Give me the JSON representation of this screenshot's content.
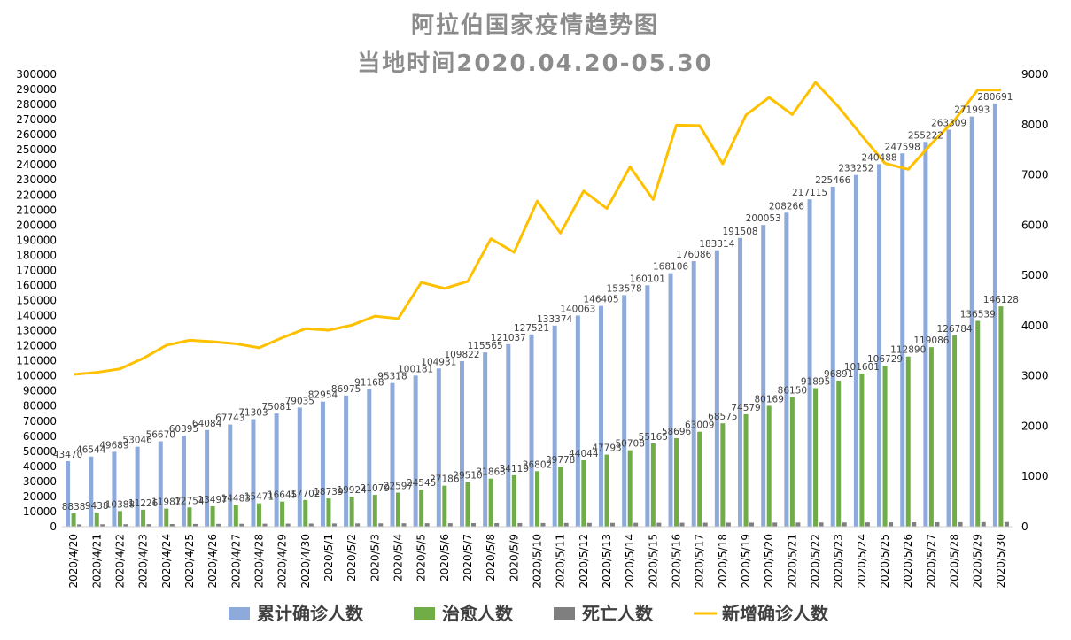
{
  "chart_data": {
    "type": "bar",
    "title": "阿拉伯国家疫情趋势图",
    "subtitle": "当地时间2020.04.20-05.30",
    "categories": [
      "2020/4/20",
      "2020/4/21",
      "2020/4/22",
      "2020/4/23",
      "2020/4/24",
      "2020/4/25",
      "2020/4/26",
      "2020/4/27",
      "2020/4/28",
      "2020/4/29",
      "2020/4/30",
      "2020/5/1",
      "2020/5/2",
      "2020/5/3",
      "2020/5/4",
      "2020/5/5",
      "2020/5/6",
      "2020/5/7",
      "2020/5/8",
      "2020/5/9",
      "2020/5/10",
      "2020/5/11",
      "2020/5/12",
      "2020/5/13",
      "2020/5/14",
      "2020/5/15",
      "2020/5/16",
      "2020/5/17",
      "2020/5/18",
      "2020/5/19",
      "2020/5/20",
      "2020/5/21",
      "2020/5/22",
      "2020/5/23",
      "2020/5/24",
      "2020/5/25",
      "2020/5/26",
      "2020/5/27",
      "2020/5/28",
      "2020/5/29",
      "2020/5/30"
    ],
    "y_left": {
      "min": 0,
      "max": 300000,
      "step": 10000
    },
    "y_right": {
      "min": 0,
      "max": 9000,
      "step": 1000
    },
    "grid": false,
    "legend_position": "bottom",
    "series": [
      {
        "name": "累计确诊人数",
        "type": "bar",
        "axis": "left",
        "color": "#8eaadb",
        "show_labels": true,
        "values": [
          43470,
          46544,
          49689,
          53046,
          56670,
          60395,
          64084,
          67743,
          71303,
          75081,
          79035,
          82954,
          86975,
          91168,
          95318,
          100181,
          104931,
          109822,
          115565,
          121037,
          127521,
          133374,
          140063,
          146405,
          153578,
          160101,
          168106,
          176086,
          183314,
          191508,
          200053,
          208266,
          217115,
          225466,
          233252,
          240488,
          247598,
          255222,
          263309,
          271993,
          280691
        ]
      },
      {
        "name": "治愈人数",
        "type": "bar",
        "axis": "left",
        "color": "#70ad47",
        "show_labels": true,
        "values": [
          8838,
          9438,
          10388,
          11226,
          11987,
          12754,
          13497,
          14483,
          15471,
          16645,
          17702,
          18739,
          19924,
          21079,
          22597,
          24545,
          27186,
          29510,
          31863,
          34119,
          36802,
          39778,
          44044,
          47793,
          50708,
          55165,
          58696,
          63009,
          68575,
          74579,
          80169,
          86150,
          91895,
          96891,
          101601,
          106729,
          112890,
          119086,
          126784,
          136539,
          146128
        ]
      },
      {
        "name": "死亡人数",
        "type": "bar",
        "axis": "left",
        "color": "#7f7f7f",
        "show_labels": false,
        "values": [
          1520,
          1580,
          1640,
          1700,
          1760,
          1820,
          1880,
          1930,
          1980,
          2030,
          2080,
          2120,
          2160,
          2200,
          2240,
          2270,
          2300,
          2330,
          2360,
          2390,
          2420,
          2450,
          2480,
          2510,
          2540,
          2570,
          2600,
          2630,
          2660,
          2690,
          2720,
          2750,
          2780,
          2810,
          2840,
          2880,
          2920,
          2960,
          3000,
          3040,
          3080
        ]
      },
      {
        "name": "新增确诊人数",
        "type": "line",
        "axis": "right",
        "color": "#ffc000",
        "show_labels": false,
        "values": [
          3030,
          3070,
          3140,
          3350,
          3610,
          3710,
          3680,
          3640,
          3560,
          3760,
          3940,
          3910,
          4010,
          4190,
          4140,
          4860,
          4740,
          4880,
          5730,
          5460,
          6480,
          5840,
          6680,
          6330,
          7160,
          6510,
          7990,
          7980,
          7220,
          8190,
          8540,
          8200,
          8840,
          8350,
          7780,
          7230,
          7110,
          7620,
          8090,
          8690,
          8690
        ]
      }
    ]
  }
}
